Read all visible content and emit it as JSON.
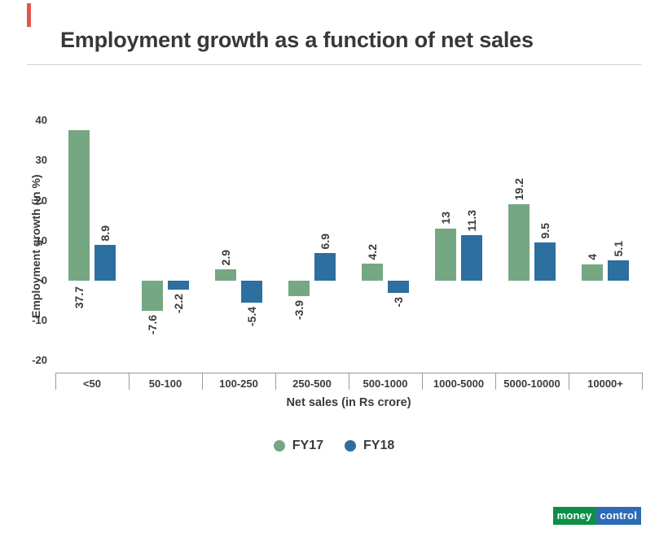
{
  "header": {
    "title": "Employment growth as a function of net sales"
  },
  "chart_data": {
    "type": "bar",
    "title": "Employment growth as a function of net sales",
    "categories": [
      "<50",
      "50-100",
      "100-250",
      "250-500",
      "500-1000",
      "1000-5000",
      "5000-10000",
      "10000+"
    ],
    "series": [
      {
        "name": "FY17",
        "color": "#76a783",
        "values": [
          37.7,
          -7.6,
          2.9,
          -3.9,
          4.2,
          13,
          19.2,
          4
        ]
      },
      {
        "name": "FY18",
        "color": "#2d6f9f",
        "values": [
          8.9,
          -2.2,
          -5.4,
          6.9,
          -3,
          11.3,
          9.5,
          5.1
        ]
      }
    ],
    "xlabel": "Net sales (in Rs crore)",
    "ylabel": "Employment growth (in %)",
    "ylim": [
      -20,
      40
    ],
    "yticks": [
      40,
      30,
      20,
      10,
      0,
      -10,
      -20
    ],
    "grid": false,
    "legend_position": "bottom",
    "value_labels_rotated": true
  },
  "branding": {
    "logo_text_1": "money",
    "logo_text_2": "control",
    "logo_color_1": "#0d8f47",
    "logo_color_2": "#2d6cb5"
  },
  "colors": {
    "accent_bar": "#e2574d",
    "fy17": "#76a783",
    "fy18": "#2d6f9f",
    "text": "#3b3b3b",
    "axis": "#9b9b9b"
  }
}
